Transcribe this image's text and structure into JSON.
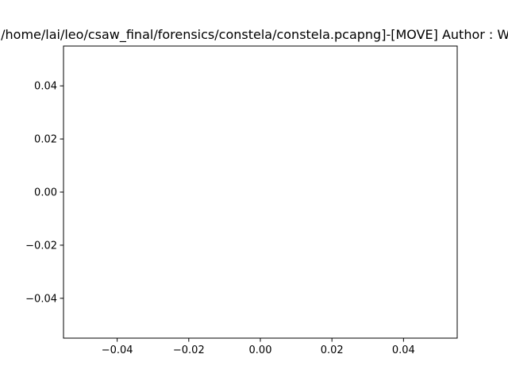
{
  "window": {
    "title": "[/home/lai/leo/csaw_final/forensics/constela/constela.pcapng]-[MOVE] Author : Wan"
  },
  "chart_data": {
    "type": "scatter",
    "title": "[/home/lai/leo/csaw_final/forensics/constela/constela.pcapng]-[MOVE] Author : Wan",
    "xlabel": "",
    "ylabel": "",
    "xlim": [
      -0.055,
      0.055
    ],
    "ylim": [
      -0.055,
      0.055
    ],
    "xticks": [
      -0.04,
      -0.02,
      0.0,
      0.02,
      0.04
    ],
    "yticks": [
      -0.04,
      -0.02,
      0.0,
      0.02,
      0.04
    ],
    "xtick_labels": [
      "−0.04",
      "−0.02",
      "0.00",
      "0.02",
      "0.04"
    ],
    "ytick_labels": [
      "−0.04",
      "−0.02",
      "0.00",
      "0.02",
      "0.04"
    ],
    "series": [
      {
        "x": [],
        "y": []
      }
    ],
    "grid": false,
    "legend": "none"
  }
}
